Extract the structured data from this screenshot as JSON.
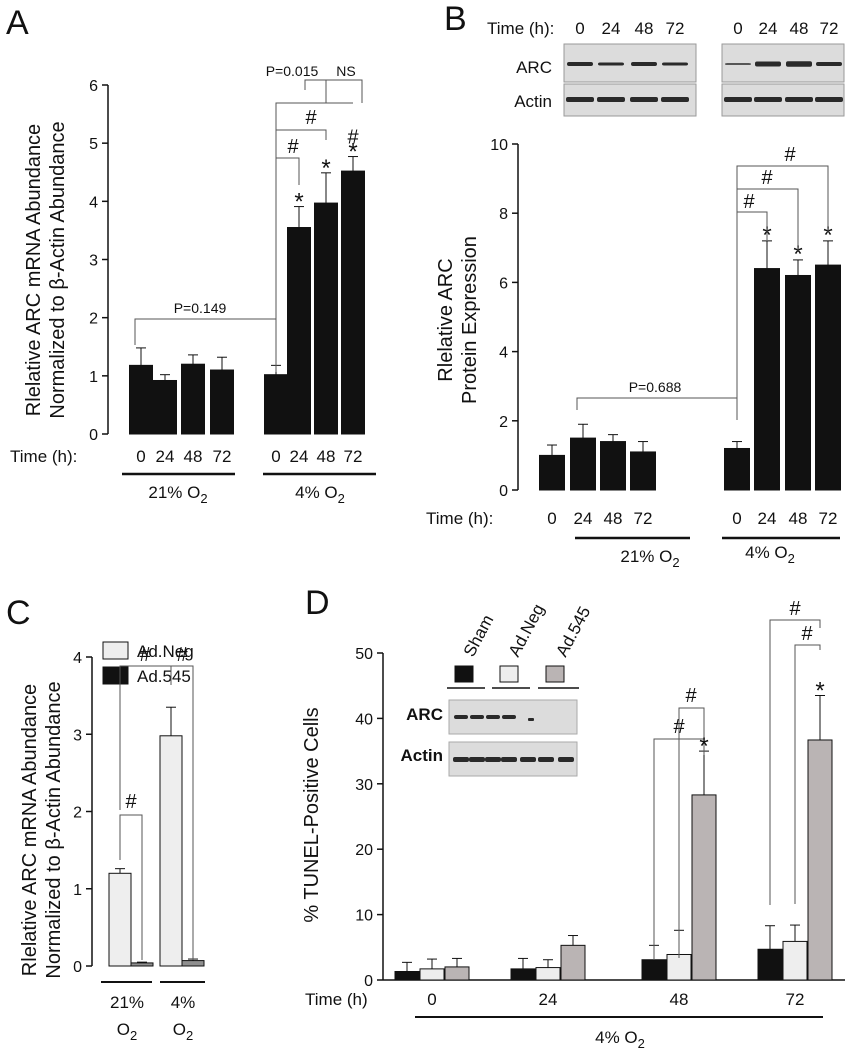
{
  "chart_data": [
    {
      "panel": "A",
      "type": "bar",
      "ylabel_line1": "Rlelative ARC mRNA Abundance",
      "ylabel_line2": "Normalized to β-Actin Abundance",
      "ylim": [
        0,
        6
      ],
      "yticks": [
        "0",
        "1",
        "2",
        "3",
        "4",
        "5",
        "6"
      ],
      "x_title": "Time (h):",
      "categories": [
        "0",
        "24",
        "48",
        "72",
        "0",
        "24",
        "48",
        "72"
      ],
      "groups": [
        {
          "label": "21% O",
          "sub": "2"
        },
        {
          "label": "4% O",
          "sub": "2"
        }
      ],
      "values": [
        1.18,
        0.92,
        1.2,
        1.1,
        1.02,
        3.55,
        3.97,
        4.52
      ],
      "errors": [
        0.3,
        0.1,
        0.16,
        0.22,
        0.16,
        0.36,
        0.52,
        0.25
      ],
      "markers": [
        "",
        "",
        "",
        "",
        "",
        "*",
        "*",
        "#*"
      ],
      "annotations": {
        "p1": "P=0.149",
        "p2": "P=0.015",
        "ns": "NS",
        "hash": "#"
      }
    },
    {
      "panel": "B",
      "type": "bar",
      "ylabel_line1": "Rlelative ARC",
      "ylabel_line2": "Protein Expression",
      "ylim": [
        0,
        10
      ],
      "yticks": [
        "0",
        "2",
        "4",
        "6",
        "8",
        "10"
      ],
      "x_title": "Time (h):",
      "categories": [
        "0",
        "24",
        "48",
        "72",
        "0",
        "24",
        "48",
        "72"
      ],
      "groups": [
        {
          "label": "21% O",
          "sub": "2"
        },
        {
          "label": "4% O",
          "sub": "2"
        }
      ],
      "values": [
        1.0,
        1.5,
        1.4,
        1.1,
        1.2,
        6.4,
        6.2,
        6.5
      ],
      "errors": [
        0.3,
        0.4,
        0.2,
        0.3,
        0.2,
        0.8,
        0.45,
        0.7
      ],
      "markers": [
        "",
        "",
        "",
        "",
        "",
        "*",
        "*",
        "*"
      ],
      "annotations": {
        "p1": "P=0.688",
        "hash": "#"
      },
      "blot": {
        "time_label": "Time (h):",
        "lanes": [
          "0",
          "24",
          "48",
          "72",
          "0",
          "24",
          "48",
          "72"
        ],
        "rows": [
          "ARC",
          "Actin"
        ]
      }
    },
    {
      "panel": "C",
      "type": "bar",
      "ylabel_line1": "Rlelative ARC mRNA Abundance",
      "ylabel_line2": "Normalized to β-Actin Abundance",
      "ylim": [
        0,
        4
      ],
      "yticks": [
        "0",
        "1",
        "2",
        "3",
        "4"
      ],
      "legend": [
        "Ad.Neg",
        "Ad.545"
      ],
      "groups": [
        {
          "label": "21%",
          "o": "O",
          "sub": "2"
        },
        {
          "label": "4%",
          "o": "O",
          "sub": "2"
        }
      ],
      "series": [
        {
          "name": "Ad.Neg",
          "values": [
            1.2,
            2.98
          ],
          "errors": [
            0.06,
            0.37
          ]
        },
        {
          "name": "Ad.545",
          "values": [
            0.04,
            0.07
          ],
          "errors": [
            0.01,
            0.02
          ]
        }
      ],
      "annotations": {
        "hash": "#"
      }
    },
    {
      "panel": "D",
      "type": "bar",
      "ylabel": "% TUNEL-Positive Cells",
      "ylim": [
        0,
        50
      ],
      "yticks": [
        "0",
        "10",
        "20",
        "30",
        "40",
        "50"
      ],
      "x_title": "Time (h)",
      "categories": [
        "0",
        "24",
        "48",
        "72"
      ],
      "xgroup_label": {
        "label": "4% O",
        "sub": "2"
      },
      "series": [
        {
          "name": "Sham",
          "values": [
            1.3,
            1.7,
            3.1,
            4.7
          ],
          "errors": [
            1.4,
            1.6,
            2.2,
            3.6
          ]
        },
        {
          "name": "Ad.Neg",
          "values": [
            1.7,
            1.9,
            3.9,
            5.9
          ],
          "errors": [
            1.5,
            1.2,
            3.7,
            2.5
          ]
        },
        {
          "name": "Ad.545",
          "values": [
            2.0,
            5.3,
            28.3,
            36.7
          ],
          "errors": [
            1.3,
            1.5,
            6.7,
            6.8
          ]
        }
      ],
      "annotations": {
        "hash": "#",
        "star": "*"
      },
      "blot": {
        "lanes": [
          "Sham",
          "Ad.Neg",
          "Ad.545"
        ],
        "rows": [
          "ARC",
          "Actin"
        ]
      }
    }
  ],
  "colors": {
    "black": "#111111",
    "light": "#eeeeee",
    "gray": "#bab4b4",
    "blot_bg": "#dcdcdc",
    "band": "#2a2a2a"
  }
}
